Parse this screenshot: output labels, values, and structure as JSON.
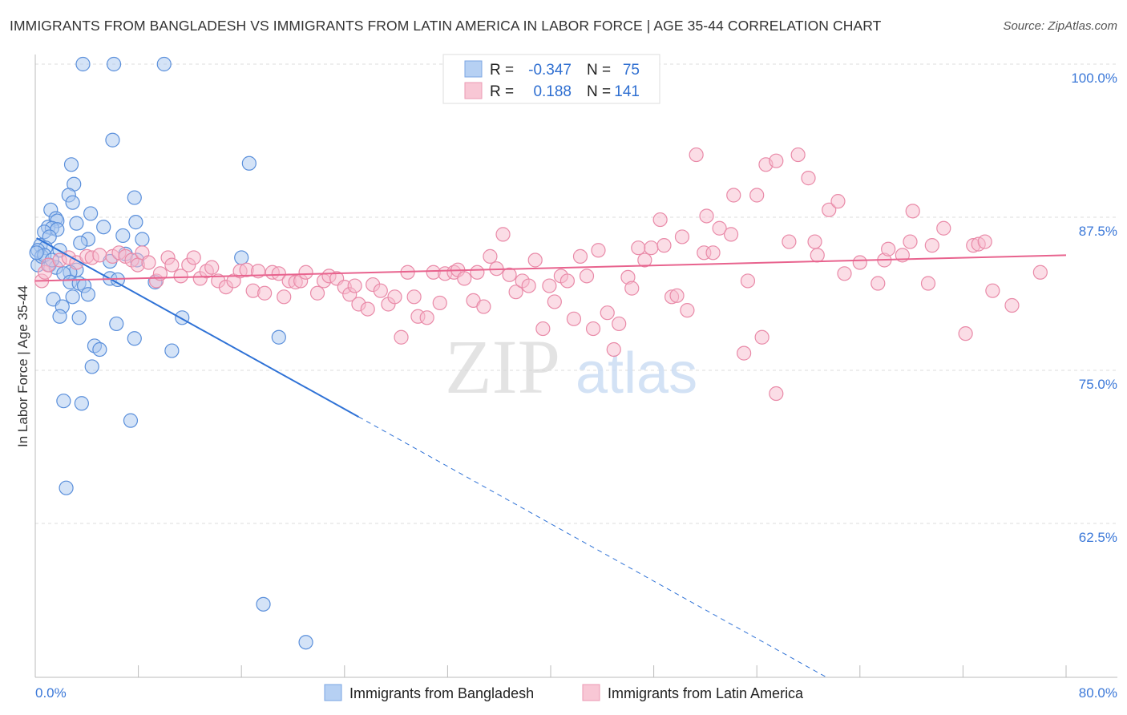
{
  "chart_data": {
    "type": "scatter",
    "title": "IMMIGRANTS FROM BANGLADESH VS IMMIGRANTS FROM LATIN AMERICA IN LABOR FORCE | AGE 35-44 CORRELATION CHART",
    "source": "Source: ZipAtlas.com",
    "watermark": "ZIPatlas",
    "xlabel": "",
    "ylabel": "In Labor Force | Age 35-44",
    "xlim": [
      0,
      80
    ],
    "ylim": [
      50,
      100
    ],
    "x_tick_labels": [
      "0.0%",
      "80.0%"
    ],
    "y_ticks": [
      100,
      87.5,
      75,
      62.5
    ],
    "y_tick_labels": [
      "100.0%",
      "87.5%",
      "75.0%",
      "62.5%"
    ],
    "grid": true,
    "legend_placement": "top-center",
    "stats": [
      {
        "r_label": "R =",
        "r": "-0.347",
        "n_label": "N =",
        "n": "75"
      },
      {
        "r_label": "R =",
        "r": "0.188",
        "n_label": "N =",
        "n": "141"
      }
    ],
    "series": [
      {
        "name": "Immigrants from Bangladesh",
        "fill": "#a9c8f0",
        "stroke": "#5a8fdb",
        "line_color": "#2f72d6",
        "trend": {
          "solid": [
            [
              0.1,
              85.8
            ],
            [
              25.1,
              71.2
            ]
          ],
          "dashed": [
            [
              25.1,
              71.2
            ],
            [
              61.3,
              50
            ]
          ]
        },
        "points": [
          [
            3.7,
            100
          ],
          [
            6.1,
            100
          ],
          [
            10.0,
            100
          ],
          [
            6.0,
            93.8
          ],
          [
            16.6,
            91.9
          ],
          [
            2.8,
            91.8
          ],
          [
            3.0,
            90.2
          ],
          [
            2.6,
            89.3
          ],
          [
            7.7,
            89.1
          ],
          [
            2.9,
            88.7
          ],
          [
            1.2,
            88.1
          ],
          [
            4.3,
            87.8
          ],
          [
            1.6,
            87.4
          ],
          [
            1.7,
            87.2
          ],
          [
            7.8,
            87.1
          ],
          [
            3.2,
            87.0
          ],
          [
            1.0,
            86.7
          ],
          [
            1.3,
            86.6
          ],
          [
            5.3,
            86.7
          ],
          [
            1.7,
            86.5
          ],
          [
            0.7,
            86.3
          ],
          [
            6.8,
            86.0
          ],
          [
            4.1,
            85.7
          ],
          [
            8.3,
            85.7
          ],
          [
            1.1,
            85.9
          ],
          [
            3.5,
            85.4
          ],
          [
            0.4,
            85.2
          ],
          [
            0.8,
            85.0
          ],
          [
            1.9,
            84.8
          ],
          [
            0.2,
            84.8
          ],
          [
            7.0,
            84.5
          ],
          [
            16.0,
            84.2
          ],
          [
            5.8,
            83.9
          ],
          [
            7.9,
            84.0
          ],
          [
            0.2,
            83.6
          ],
          [
            1.1,
            83.6
          ],
          [
            1.6,
            83.4
          ],
          [
            3.2,
            83.2
          ],
          [
            2.7,
            83.0
          ],
          [
            2.2,
            82.9
          ],
          [
            5.8,
            82.5
          ],
          [
            6.4,
            82.4
          ],
          [
            9.3,
            82.2
          ],
          [
            2.7,
            82.2
          ],
          [
            3.4,
            82.1
          ],
          [
            3.8,
            81.9
          ],
          [
            4.1,
            81.2
          ],
          [
            1.4,
            80.8
          ],
          [
            2.9,
            81.0
          ],
          [
            2.1,
            80.2
          ],
          [
            1.9,
            79.4
          ],
          [
            3.4,
            79.3
          ],
          [
            11.4,
            79.3
          ],
          [
            6.3,
            78.8
          ],
          [
            18.9,
            77.7
          ],
          [
            7.7,
            77.6
          ],
          [
            4.6,
            77.0
          ],
          [
            5.0,
            76.7
          ],
          [
            10.6,
            76.6
          ],
          [
            4.4,
            75.3
          ],
          [
            2.2,
            72.5
          ],
          [
            3.6,
            72.3
          ],
          [
            7.4,
            70.9
          ],
          [
            2.4,
            65.4
          ],
          [
            17.7,
            55.9
          ],
          [
            21.0,
            52.8
          ],
          [
            0.5,
            84.3
          ],
          [
            0.7,
            84.4
          ],
          [
            1.3,
            84.0
          ],
          [
            0.1,
            84.6
          ]
        ]
      },
      {
        "name": "Immigrants from Latin America",
        "fill": "#f7bccd",
        "stroke": "#e98aa8",
        "line_color": "#e8638e",
        "trend": {
          "solid": [
            [
              0,
              82.3
            ],
            [
              80,
              84.4
            ]
          ]
        },
        "points": [
          [
            0.5,
            82.3
          ],
          [
            0.75,
            83.0
          ],
          [
            1.0,
            83.6
          ],
          [
            1.9,
            84.0
          ],
          [
            2.6,
            84.2
          ],
          [
            3.2,
            83.8
          ],
          [
            4.0,
            84.3
          ],
          [
            4.4,
            84.2
          ],
          [
            5.0,
            84.4
          ],
          [
            6.0,
            84.3
          ],
          [
            6.5,
            84.6
          ],
          [
            7.0,
            84.3
          ],
          [
            7.5,
            84.0
          ],
          [
            7.95,
            83.6
          ],
          [
            8.3,
            84.6
          ],
          [
            8.8,
            83.8
          ],
          [
            9.4,
            82.3
          ],
          [
            9.7,
            82.9
          ],
          [
            10.3,
            84.2
          ],
          [
            10.6,
            83.6
          ],
          [
            11.3,
            82.7
          ],
          [
            11.9,
            83.6
          ],
          [
            12.3,
            84.2
          ],
          [
            12.8,
            82.5
          ],
          [
            13.3,
            83.1
          ],
          [
            13.7,
            83.4
          ],
          [
            14.2,
            82.3
          ],
          [
            14.8,
            81.8
          ],
          [
            15.4,
            82.3
          ],
          [
            15.9,
            83.1
          ],
          [
            16.4,
            83.2
          ],
          [
            16.9,
            81.5
          ],
          [
            17.3,
            83.1
          ],
          [
            17.8,
            81.3
          ],
          [
            18.4,
            83.0
          ],
          [
            18.9,
            82.9
          ],
          [
            19.3,
            81.0
          ],
          [
            19.7,
            82.3
          ],
          [
            20.2,
            82.2
          ],
          [
            20.6,
            82.3
          ],
          [
            21.0,
            83.0
          ],
          [
            21.9,
            81.3
          ],
          [
            22.4,
            82.3
          ],
          [
            22.8,
            82.7
          ],
          [
            23.4,
            82.5
          ],
          [
            24.0,
            81.8
          ],
          [
            24.4,
            81.2
          ],
          [
            24.8,
            81.9
          ],
          [
            25.1,
            80.4
          ],
          [
            25.8,
            80.0
          ],
          [
            26.2,
            82.0
          ],
          [
            26.8,
            81.5
          ],
          [
            27.4,
            80.4
          ],
          [
            27.9,
            81.0
          ],
          [
            28.4,
            77.7
          ],
          [
            28.9,
            83.0
          ],
          [
            29.4,
            81.0
          ],
          [
            29.7,
            79.4
          ],
          [
            30.4,
            79.3
          ],
          [
            30.9,
            83.0
          ],
          [
            31.4,
            80.5
          ],
          [
            31.8,
            82.9
          ],
          [
            32.5,
            83.0
          ],
          [
            32.8,
            83.2
          ],
          [
            33.3,
            82.5
          ],
          [
            34.0,
            80.7
          ],
          [
            34.3,
            83.0
          ],
          [
            34.8,
            80.2
          ],
          [
            35.3,
            84.3
          ],
          [
            35.8,
            83.3
          ],
          [
            36.3,
            86.1
          ],
          [
            36.8,
            82.8
          ],
          [
            37.3,
            81.4
          ],
          [
            37.8,
            82.3
          ],
          [
            38.3,
            81.9
          ],
          [
            38.8,
            84.0
          ],
          [
            39.4,
            78.4
          ],
          [
            39.9,
            81.9
          ],
          [
            40.3,
            80.6
          ],
          [
            40.8,
            82.7
          ],
          [
            41.3,
            82.3
          ],
          [
            41.8,
            79.2
          ],
          [
            42.3,
            84.3
          ],
          [
            42.8,
            82.7
          ],
          [
            43.3,
            78.4
          ],
          [
            43.7,
            84.8
          ],
          [
            44.4,
            79.7
          ],
          [
            44.9,
            76.7
          ],
          [
            45.3,
            78.8
          ],
          [
            46.0,
            82.6
          ],
          [
            46.3,
            81.7
          ],
          [
            46.8,
            85.0
          ],
          [
            47.3,
            84.0
          ],
          [
            47.8,
            85.0
          ],
          [
            48.5,
            87.3
          ],
          [
            48.8,
            85.2
          ],
          [
            49.4,
            81.0
          ],
          [
            49.8,
            81.1
          ],
          [
            50.2,
            85.9
          ],
          [
            50.6,
            79.9
          ],
          [
            51.3,
            92.6
          ],
          [
            51.9,
            84.6
          ],
          [
            52.1,
            87.6
          ],
          [
            52.6,
            84.6
          ],
          [
            53.1,
            86.6
          ],
          [
            54.0,
            86.1
          ],
          [
            54.2,
            89.3
          ],
          [
            55.0,
            76.4
          ],
          [
            55.3,
            82.3
          ],
          [
            56.0,
            89.3
          ],
          [
            56.4,
            77.7
          ],
          [
            56.7,
            91.8
          ],
          [
            57.5,
            92.1
          ],
          [
            57.5,
            73.1
          ],
          [
            58.5,
            85.5
          ],
          [
            59.2,
            92.6
          ],
          [
            60.0,
            90.7
          ],
          [
            60.5,
            85.5
          ],
          [
            60.7,
            84.4
          ],
          [
            61.6,
            88.1
          ],
          [
            62.3,
            88.8
          ],
          [
            62.8,
            82.9
          ],
          [
            64.0,
            83.8
          ],
          [
            65.4,
            82.1
          ],
          [
            65.9,
            84.0
          ],
          [
            66.2,
            84.9
          ],
          [
            67.3,
            84.4
          ],
          [
            67.9,
            85.5
          ],
          [
            68.1,
            88.0
          ],
          [
            69.3,
            82.1
          ],
          [
            69.6,
            85.2
          ],
          [
            70.5,
            86.6
          ],
          [
            72.2,
            78.0
          ],
          [
            72.8,
            85.2
          ],
          [
            73.2,
            85.3
          ],
          [
            73.7,
            85.5
          ],
          [
            74.3,
            81.5
          ],
          [
            75.8,
            80.3
          ],
          [
            78.0,
            83.0
          ]
        ]
      }
    ]
  }
}
